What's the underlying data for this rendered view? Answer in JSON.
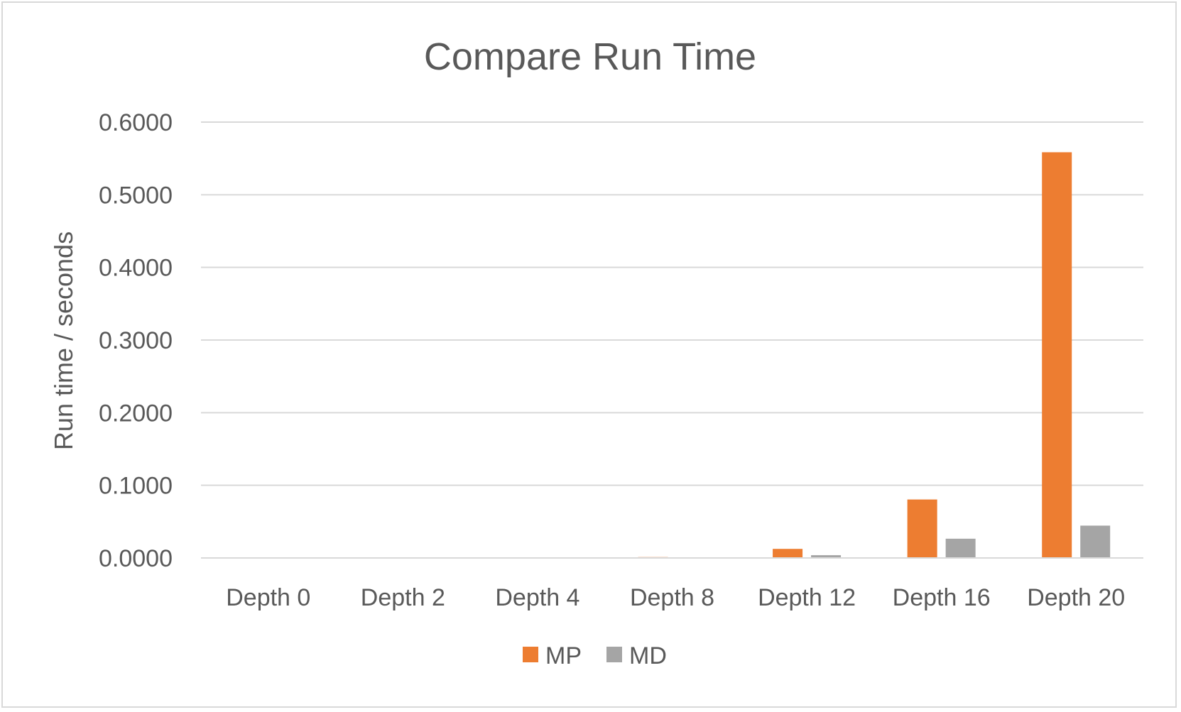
{
  "chart_data": {
    "type": "bar",
    "title": "Compare Run Time",
    "xlabel": "",
    "ylabel": "Run time / seconds",
    "categories": [
      "Depth 0",
      "Depth 2",
      "Depth 4",
      "Depth 8",
      "Depth 12",
      "Depth 16",
      "Depth 20"
    ],
    "series": [
      {
        "name": "MP",
        "color": "#ed7d31",
        "values": [
          0.0,
          0.0,
          0.0,
          0.0012,
          0.0125,
          0.0805,
          0.5585
        ]
      },
      {
        "name": "MD",
        "color": "#a5a5a5",
        "values": [
          0.0,
          0.0,
          0.0,
          0.0002,
          0.0038,
          0.0265,
          0.0445
        ]
      }
    ],
    "ylim": [
      0,
      0.6
    ],
    "yticks": [
      "0.0000",
      "0.1000",
      "0.2000",
      "0.3000",
      "0.4000",
      "0.5000",
      "0.6000"
    ],
    "grid": true,
    "legend_position": "bottom"
  }
}
